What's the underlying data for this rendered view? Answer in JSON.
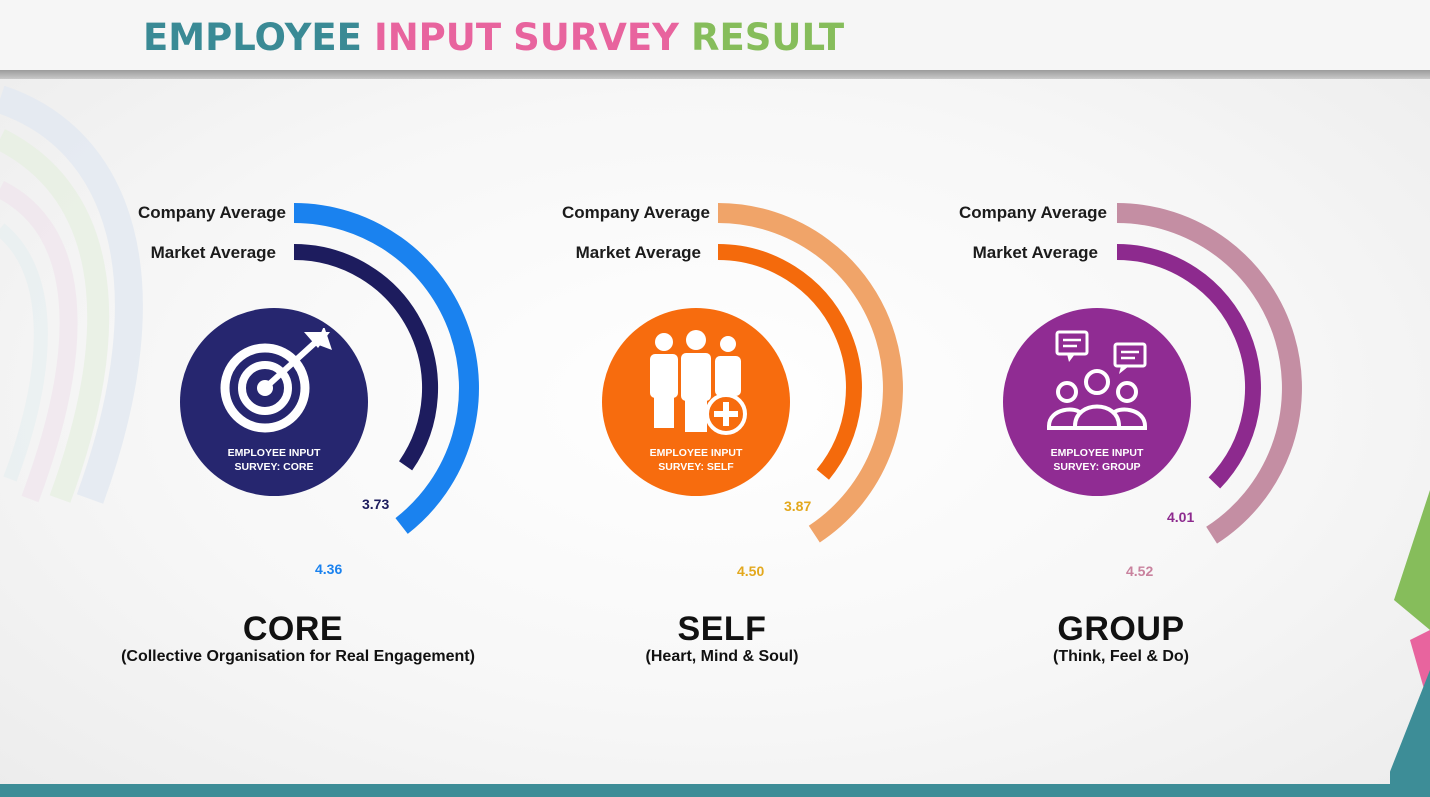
{
  "title": {
    "words": [
      {
        "text": "EMPLOYEE",
        "color": "#3a8a95"
      },
      {
        "text": "INPUT",
        "color": "#e8649e"
      },
      {
        "text": "SURVEY",
        "color": "#e8649e"
      },
      {
        "text": "RESULT",
        "color": "#86bd5b"
      }
    ]
  },
  "chart_data": {
    "type": "radial-bar",
    "series_labels": {
      "company": "Company Average",
      "market": "Market Average"
    },
    "scale_max": 5,
    "panels": [
      {
        "category": "CORE",
        "subtitle": "(Collective Organisation for Real Engagement)",
        "badge_line1": "EMPLOYEE INPUT",
        "badge_line2": "SURVEY: CORE",
        "icon": "target-icon",
        "company_value": "4.36",
        "market_value": "3.73",
        "company_color": "#1a82ef",
        "market_color": "#1d1c5e",
        "company_label_color": "#1a82ef",
        "market_label_color": "#1d1c5e",
        "circle_color": "#26266f"
      },
      {
        "category": "SELF",
        "subtitle": "(Heart, Mind & Soul)",
        "badge_line1": "EMPLOYEE INPUT",
        "badge_line2": "SURVEY: SELF",
        "icon": "people-plus-icon",
        "company_value": "4.50",
        "market_value": "3.87",
        "company_color": "#f0a469",
        "market_color": "#f46a0c",
        "company_label_color": "#e3a81d",
        "market_label_color": "#e3a81d",
        "circle_color": "#f76c0e"
      },
      {
        "category": "GROUP",
        "subtitle": "(Think, Feel & Do)",
        "badge_line1": "EMPLOYEE INPUT",
        "badge_line2": "SURVEY: GROUP",
        "icon": "group-chat-icon",
        "company_value": "4.52",
        "market_value": "4.01",
        "company_color": "#c48ea3",
        "market_color": "#8d2a8e",
        "company_label_color": "#c9829e",
        "market_label_color": "#8d2a8e",
        "circle_color": "#902c93"
      }
    ]
  }
}
